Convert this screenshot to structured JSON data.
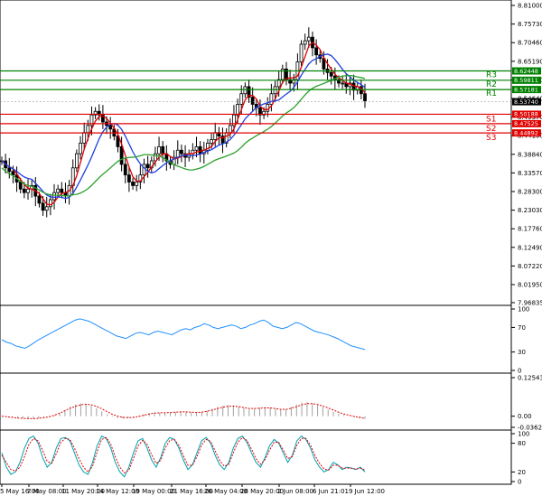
{
  "chart_data": [
    {
      "type": "candlestick",
      "panel": "price",
      "ylim": [
        7.96835,
        8.81
      ],
      "y_ticks": [
        "8.81000",
        "8.75730",
        "8.70460",
        "8.65190",
        "8.59920",
        "8.54640",
        "8.49370",
        "8.44100",
        "8.38840",
        "8.33570",
        "8.28300",
        "8.23030",
        "8.17760",
        "8.12490",
        "8.07220",
        "8.01950",
        "7.96835"
      ],
      "x_tick_labels": [
        "5 May 16:00",
        "7 May 08:00",
        "11 May 20:00",
        "14 May 12:00",
        "19 May 00:00",
        "21 May 16:00",
        "26 May 04:00",
        "28 May 20:00",
        "2 Jun 08:00",
        "6 Jun 21:01",
        "9 Jun 12:00"
      ],
      "levels": [
        {
          "name": "R3",
          "value": 8.62448,
          "label": "8.62448",
          "color": "#008000"
        },
        {
          "name": "R2",
          "value": 8.59811,
          "label": "8.59811",
          "color": "#008000"
        },
        {
          "name": "R1",
          "value": 8.57181,
          "label": "8.57181",
          "color": "#008000"
        },
        {
          "name": "S1",
          "value": 8.50188,
          "label": "8.50188",
          "color": "#e00000"
        },
        {
          "name": "S2",
          "value": 8.47525,
          "label": "8.47525",
          "color": "#e00000"
        },
        {
          "name": "S3",
          "value": 8.44892,
          "label": "8.44892",
          "color": "#e00000"
        }
      ],
      "current_price": {
        "value": 8.5374,
        "label": "8.53740"
      },
      "close_series": [
        8.37,
        8.35,
        8.34,
        8.33,
        8.31,
        8.29,
        8.28,
        8.29,
        8.3,
        8.27,
        8.25,
        8.23,
        8.24,
        8.26,
        8.28,
        8.29,
        8.28,
        8.27,
        8.3,
        8.35,
        8.39,
        8.42,
        8.45,
        8.47,
        8.5,
        8.51,
        8.5,
        8.48,
        8.47,
        8.46,
        8.44,
        8.41,
        8.36,
        8.33,
        8.31,
        8.3,
        8.31,
        8.33,
        8.36,
        8.35,
        8.37,
        8.39,
        8.41,
        8.39,
        8.37,
        8.36,
        8.38,
        8.4,
        8.39,
        8.38,
        8.39,
        8.4,
        8.41,
        8.39,
        8.4,
        8.42,
        8.43,
        8.45,
        8.44,
        8.42,
        8.45,
        8.47,
        8.5,
        8.53,
        8.56,
        8.58,
        8.55,
        8.53,
        8.52,
        8.5,
        8.51,
        8.53,
        8.56,
        8.58,
        8.6,
        8.63,
        8.6,
        8.59,
        8.6,
        8.65,
        8.7,
        8.71,
        8.72,
        8.69,
        8.67,
        8.66,
        8.63,
        8.62,
        8.61,
        8.6,
        8.59,
        8.59,
        8.58,
        8.59,
        8.57,
        8.58,
        8.56,
        8.54
      ],
      "indicators": [
        "MA fast (red)",
        "MA medium (blue)",
        "MA slow (green)"
      ],
      "colors": {
        "up_candle": "#000000",
        "down_candle": "#000000",
        "ma_fast": "#e00000",
        "ma_mid": "#1e3fe0",
        "ma_slow": "#2ca02c",
        "support": "#e00000",
        "resistance": "#008000"
      }
    },
    {
      "type": "line",
      "panel": "rsi",
      "ylim": [
        0,
        100
      ],
      "y_ticks": [
        "100",
        "70",
        "30",
        "0"
      ],
      "values": [
        50,
        46,
        44,
        40,
        38,
        36,
        40,
        45,
        50,
        54,
        58,
        62,
        66,
        70,
        74,
        78,
        82,
        84,
        82,
        80,
        76,
        72,
        68,
        64,
        60,
        56,
        54,
        52,
        56,
        60,
        62,
        60,
        58,
        62,
        64,
        62,
        60,
        58,
        62,
        66,
        68,
        66,
        70,
        72,
        76,
        74,
        70,
        68,
        70,
        72,
        74,
        72,
        68,
        70,
        74,
        76,
        80,
        82,
        78,
        72,
        70,
        68,
        70,
        74,
        78,
        76,
        72,
        68,
        64,
        62,
        60,
        58,
        55,
        52,
        48,
        44,
        40,
        38,
        36,
        34
      ]
    },
    {
      "type": "bar+line",
      "panel": "macd",
      "ylim": [
        -0.036291,
        0.125438
      ],
      "y_ticks": [
        "0.125438",
        "0.00",
        "-0.036291"
      ],
      "histogram": [
        0.0,
        -0.002,
        -0.004,
        -0.006,
        -0.007,
        -0.008,
        -0.008,
        -0.007,
        -0.005,
        -0.002,
        0.003,
        0.01,
        0.02,
        0.03,
        0.038,
        0.042,
        0.04,
        0.034,
        0.026,
        0.016,
        0.006,
        -0.002,
        -0.006,
        -0.008,
        -0.006,
        -0.003,
        0.002,
        0.006,
        0.01,
        0.012,
        0.011,
        0.01,
        0.012,
        0.014,
        0.016,
        0.015,
        0.012,
        0.01,
        0.013,
        0.018,
        0.024,
        0.03,
        0.034,
        0.036,
        0.034,
        0.03,
        0.026,
        0.022,
        0.024,
        0.028,
        0.03,
        0.028,
        0.024,
        0.02,
        0.022,
        0.03,
        0.038,
        0.044,
        0.046,
        0.042,
        0.036,
        0.03,
        0.022,
        0.014,
        0.008,
        0.004,
        0.0,
        -0.004,
        -0.007,
        -0.009
      ],
      "signal": [
        0.0,
        -0.002,
        -0.004,
        -0.006,
        -0.007,
        -0.008,
        -0.008,
        -0.007,
        -0.005,
        -0.002,
        0.003,
        0.01,
        0.018,
        0.026,
        0.032,
        0.037,
        0.039,
        0.037,
        0.032,
        0.024,
        0.015,
        0.006,
        0.0,
        -0.004,
        -0.005,
        -0.004,
        -0.001,
        0.003,
        0.007,
        0.01,
        0.011,
        0.011,
        0.012,
        0.013,
        0.014,
        0.014,
        0.013,
        0.012,
        0.013,
        0.016,
        0.02,
        0.025,
        0.029,
        0.032,
        0.033,
        0.031,
        0.028,
        0.025,
        0.025,
        0.026,
        0.027,
        0.027,
        0.025,
        0.022,
        0.022,
        0.026,
        0.031,
        0.037,
        0.041,
        0.041,
        0.038,
        0.033,
        0.027,
        0.02,
        0.013,
        0.007,
        0.003,
        -0.001,
        -0.004,
        -0.007
      ]
    },
    {
      "type": "line",
      "panel": "stochastic",
      "ylim": [
        0,
        100
      ],
      "y_ticks": [
        "100",
        "80",
        "20",
        "0"
      ],
      "k_values": [
        60,
        30,
        15,
        20,
        40,
        70,
        90,
        95,
        80,
        50,
        30,
        40,
        70,
        90,
        92,
        85,
        60,
        35,
        20,
        15,
        40,
        75,
        95,
        90,
        70,
        40,
        20,
        10,
        30,
        60,
        85,
        90,
        70,
        45,
        30,
        50,
        80,
        92,
        88,
        70,
        45,
        25,
        35,
        60,
        85,
        92,
        80,
        55,
        35,
        25,
        40,
        70,
        90,
        95,
        82,
        60,
        40,
        30,
        50,
        75,
        88,
        80,
        60,
        40,
        55,
        85,
        95,
        88,
        70,
        45,
        30,
        20,
        25,
        40,
        35,
        25,
        30,
        28,
        25,
        30,
        20
      ],
      "d_values": [
        55,
        40,
        25,
        22,
        30,
        52,
        78,
        90,
        85,
        65,
        42,
        38,
        58,
        82,
        90,
        88,
        70,
        48,
        30,
        20,
        32,
        62,
        88,
        92,
        78,
        52,
        30,
        18,
        24,
        48,
        74,
        86,
        78,
        56,
        38,
        44,
        70,
        86,
        88,
        76,
        54,
        34,
        34,
        52,
        76,
        88,
        84,
        64,
        44,
        32,
        36,
        60,
        82,
        92,
        86,
        68,
        48,
        36,
        46,
        66,
        82,
        82,
        66,
        48,
        52,
        76,
        90,
        90,
        76,
        54,
        38,
        26,
        24,
        34,
        34,
        28,
        28,
        28,
        26,
        28,
        24
      ]
    }
  ]
}
